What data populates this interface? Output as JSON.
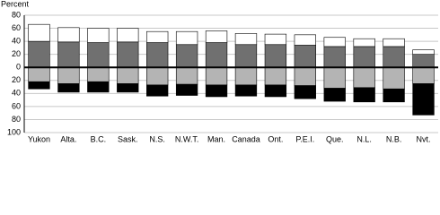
{
  "chart_data": {
    "type": "diverging-stacked-bar",
    "y_label": "Percent",
    "categories": [
      "Yukon",
      "Alta.",
      "B.C.",
      "Sask.",
      "N.S.",
      "N.W.T.",
      "Man.",
      "Canada",
      "Ont.",
      "P.E.I.",
      "Que.",
      "N.L.",
      "N.B.",
      "Nvt."
    ],
    "series": [
      {
        "color": "#707070",
        "values": [
          40,
          39,
          38,
          39,
          38,
          35,
          38,
          35,
          35,
          34,
          32,
          32,
          32,
          20
        ]
      },
      {
        "color": "#ffffff",
        "values": [
          26,
          22,
          22,
          21,
          17,
          20,
          18,
          17,
          16,
          16,
          14,
          12,
          12,
          7
        ]
      },
      {
        "color": "#b4b4b4",
        "values": [
          -22,
          -25,
          -22,
          -25,
          -27,
          -26,
          -27,
          -27,
          -27,
          -28,
          -32,
          -31,
          -33,
          -25
        ]
      },
      {
        "color": "#000000",
        "values": [
          -11,
          -13,
          -16,
          -13,
          -17,
          -17,
          -18,
          -17,
          -18,
          -20,
          -20,
          -22,
          -20,
          -48
        ]
      }
    ],
    "ylim": [
      -100,
      80
    ],
    "yticks": [
      80,
      60,
      40,
      20,
      0,
      {
        "value": -20,
        "label": "20"
      },
      {
        "value": -40,
        "label": "40"
      },
      {
        "value": -60,
        "label": "60"
      },
      {
        "value": -80,
        "label": "80"
      },
      {
        "value": -100,
        "label": "100"
      }
    ],
    "grid": true
  }
}
